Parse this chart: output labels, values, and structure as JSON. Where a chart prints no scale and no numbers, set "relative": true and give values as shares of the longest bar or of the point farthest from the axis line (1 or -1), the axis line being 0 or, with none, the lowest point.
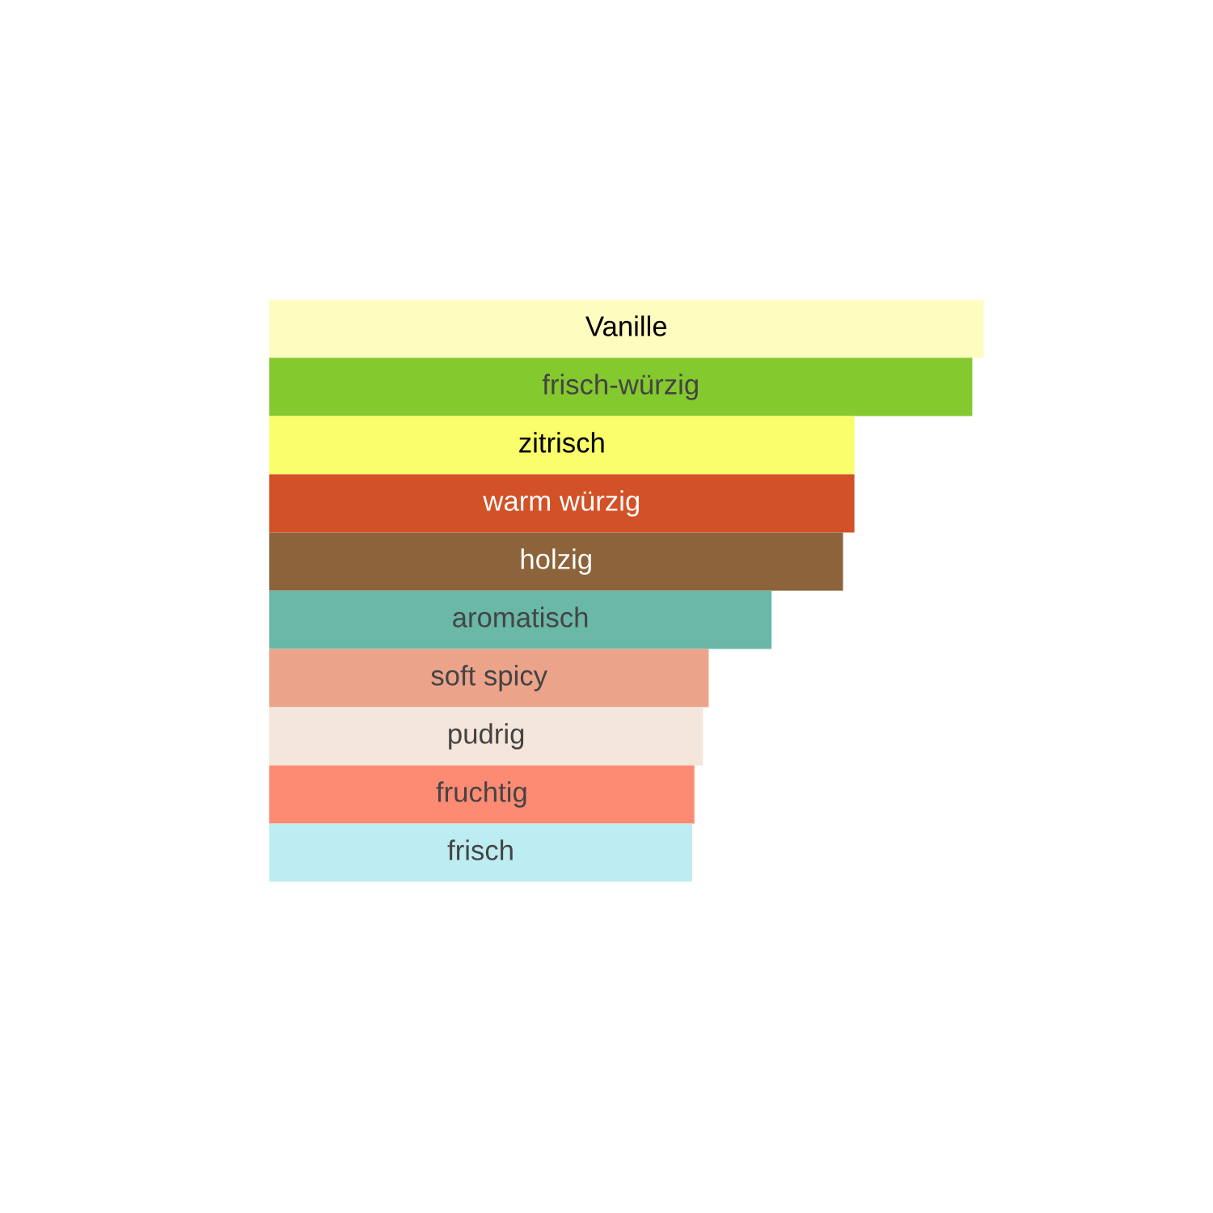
{
  "chart_data": {
    "type": "bar",
    "orientation": "horizontal",
    "relative": true,
    "categories": [
      "Vanille",
      "frisch-würzig",
      "zitrisch",
      "warm würzig",
      "holzig",
      "aromatisch",
      "soft spicy",
      "pudrig",
      "fruchtig",
      "frisch"
    ],
    "values": [
      1,
      0.984,
      0.819,
      0.819,
      0.803,
      0.703,
      0.615,
      0.607,
      0.595,
      0.592
    ],
    "colors": [
      "#fefcbe",
      "#84c92d",
      "#f9fe6a",
      "#d35127",
      "#8c633b",
      "#6ab8a7",
      "#eba38a",
      "#f4e6da",
      "#fd8b74",
      "#bdedf2"
    ]
  }
}
